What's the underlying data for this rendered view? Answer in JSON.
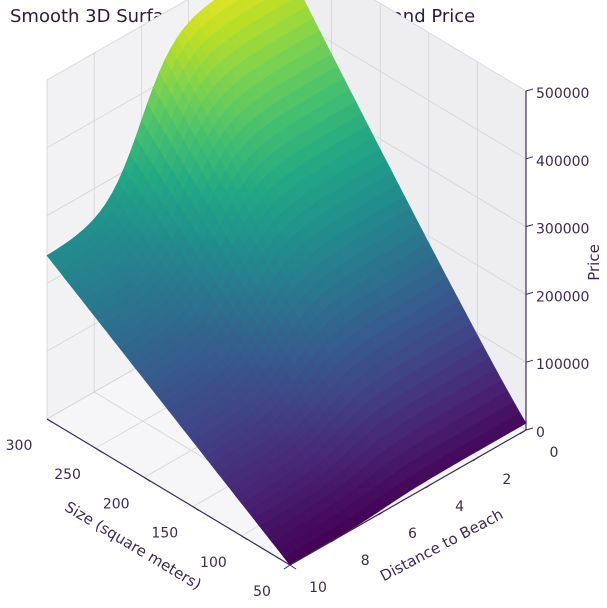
{
  "chart_data": {
    "type": "surface3d",
    "title": "Smooth 3D Surface Plot of Size, Distance, and Price",
    "xlabel": "Distance to Beach",
    "ylabel": "Size (square meters)",
    "zlabel": "Price",
    "xlim": [
      0,
      10
    ],
    "ylim": [
      50,
      300
    ],
    "zlim": [
      0,
      500000
    ],
    "x_ticks": [
      "0",
      "2",
      "4",
      "6",
      "8",
      "10"
    ],
    "y_ticks": [
      "50",
      "100",
      "150",
      "200",
      "250",
      "300"
    ],
    "z_ticks": [
      "0",
      "100000",
      "200000",
      "300000",
      "400000",
      "500000"
    ],
    "colormap": "viridis",
    "grid": true,
    "surface_corners": {
      "distance_0_size_50": 10000,
      "distance_0_size_300": 480000,
      "distance_10_size_50": 0,
      "distance_10_size_300": 240000
    }
  }
}
